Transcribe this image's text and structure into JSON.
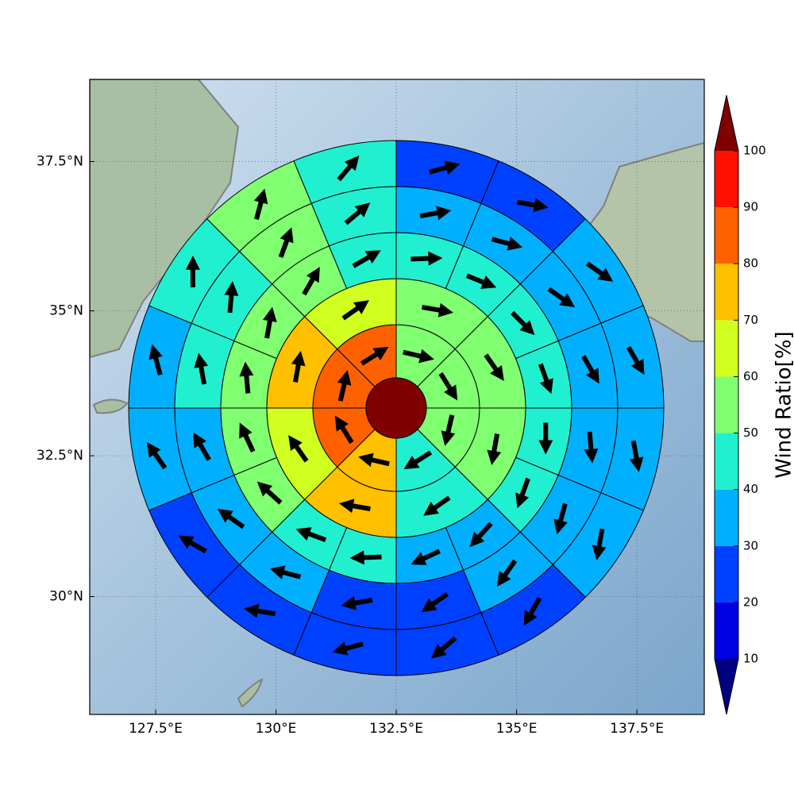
{
  "chart_data": {
    "type": "polar_sectors",
    "projection": "mercator",
    "xlim": [
      126.13,
      138.9
    ],
    "ylim": [
      27.86,
      38.84
    ],
    "xticks": [
      {
        "value": 127.5,
        "label": "127.5°E"
      },
      {
        "value": 130,
        "label": "130°E"
      },
      {
        "value": 132.5,
        "label": "132.5°E"
      },
      {
        "value": 135,
        "label": "135°E"
      },
      {
        "value": 137.5,
        "label": "137.5°E"
      }
    ],
    "yticks": [
      {
        "value": 30,
        "label": "30°N"
      },
      {
        "value": 32.5,
        "label": "32.5°N"
      },
      {
        "value": 35,
        "label": "35°N"
      },
      {
        "value": 37.5,
        "label": "37.5°N"
      }
    ],
    "grid": true,
    "center_value": 105,
    "rings": [
      {
        "values": [
          55,
          55,
          55,
          45,
          75,
          85,
          85,
          85
        ],
        "directions": [
          103,
          148,
          193,
          238,
          283,
          328,
          13,
          58
        ]
      },
      {
        "values": [
          55,
          55,
          55,
          45,
          75,
          65,
          75,
          65
        ],
        "directions": [
          100,
          145,
          190,
          235,
          280,
          325,
          10,
          55
        ]
      },
      {
        "values": [
          45,
          45,
          45,
          45,
          45,
          45,
          35,
          35,
          45,
          45,
          55,
          55,
          55,
          55,
          55,
          45
        ],
        "directions": [
          88,
          112,
          135,
          160,
          180,
          200,
          222,
          245,
          268,
          290,
          312,
          335,
          355,
          10,
          30,
          60
        ]
      },
      {
        "values": [
          35,
          35,
          35,
          35,
          35,
          35,
          35,
          25,
          25,
          35,
          35,
          35,
          45,
          45,
          55,
          45
        ],
        "directions": [
          80,
          105,
          125,
          150,
          175,
          195,
          215,
          235,
          260,
          285,
          305,
          330,
          350,
          5,
          20,
          50
        ]
      },
      {
        "values": [
          25,
          25,
          35,
          35,
          35,
          35,
          25,
          25,
          25,
          25,
          25,
          35,
          35,
          45,
          55,
          45
        ],
        "directions": [
          75,
          100,
          125,
          150,
          170,
          190,
          210,
          230,
          255,
          280,
          300,
          325,
          345,
          0,
          15,
          40
        ]
      }
    ],
    "colorbar": {
      "label": "Wind Ratio[%]",
      "ticks": [
        10,
        20,
        30,
        40,
        50,
        60,
        70,
        80,
        90,
        100
      ],
      "under_color": "#000080",
      "over_color": "#800000",
      "colors": [
        "#0000e0",
        "#0040ff",
        "#00b0ff",
        "#20f0d0",
        "#80ff70",
        "#d0ff20",
        "#ffc000",
        "#ff6000",
        "#ff1000"
      ]
    }
  }
}
